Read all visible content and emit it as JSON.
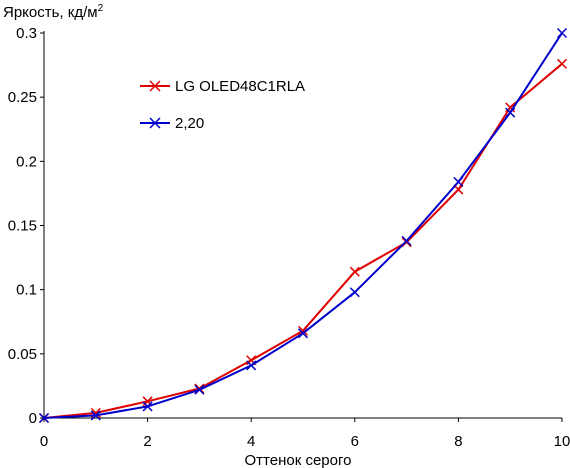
{
  "chart_data": {
    "type": "line",
    "ylabel": "Яркость, кд/м",
    "ylabel_superscript": "2",
    "xlabel": "Оттенок серого",
    "xlim": [
      0,
      10
    ],
    "ylim": [
      0,
      0.3
    ],
    "x_ticks": [
      "0",
      "2",
      "4",
      "6",
      "8",
      "10"
    ],
    "y_ticks": [
      "0",
      "0.05",
      "0.1",
      "0.15",
      "0.2",
      "0.25",
      "0.3"
    ],
    "grid": false,
    "legend_position": "upper-left",
    "series": [
      {
        "name": "LG OLED48C1RLA",
        "color": "#e00000",
        "marker": "x",
        "x": [
          0,
          1,
          2,
          3,
          4,
          5,
          6,
          7,
          8,
          9,
          10
        ],
        "y": [
          0.0,
          0.004,
          0.013,
          0.023,
          0.045,
          0.068,
          0.114,
          0.137,
          0.178,
          0.242,
          0.276
        ]
      },
      {
        "name": "2,20",
        "color": "#0000cc",
        "marker": "x",
        "x": [
          0,
          1,
          2,
          3,
          4,
          5,
          6,
          7,
          8,
          9,
          10
        ],
        "y": [
          0.0,
          0.002,
          0.009,
          0.022,
          0.041,
          0.066,
          0.098,
          0.138,
          0.184,
          0.238,
          0.3
        ]
      }
    ]
  }
}
